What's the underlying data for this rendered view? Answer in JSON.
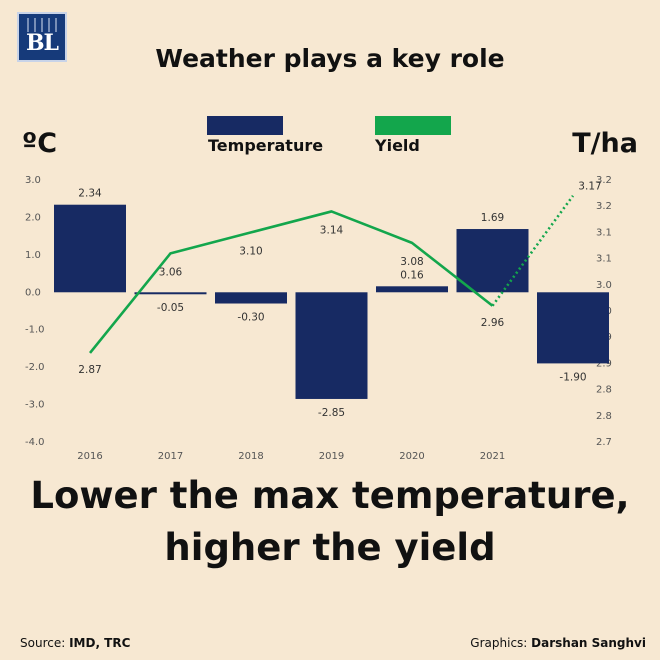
{
  "logo": {
    "text": "BL"
  },
  "title": "Weather plays a key role",
  "units": {
    "left": "ºC",
    "right": "T/ha"
  },
  "legend": {
    "temperature": {
      "label": "Temperature",
      "color": "#172a63"
    },
    "yield": {
      "label": "Yield",
      "color": "#13a64c"
    }
  },
  "headline": {
    "line1": "Lower the max temperature,",
    "line2": "higher the yield"
  },
  "footer": {
    "source_prefix": "Source: ",
    "source": "IMD, TRC",
    "graphics_prefix": "Graphics: ",
    "graphics": "Darshan Sanghvi"
  },
  "chart_data": {
    "type": "bar",
    "categories": [
      "2016",
      "2017",
      "2018",
      "2019",
      "2020",
      "2021",
      ""
    ],
    "series": [
      {
        "name": "Temperature",
        "type": "bar",
        "axis": "left",
        "values": [
          2.34,
          -0.05,
          -0.3,
          -2.85,
          0.16,
          1.69,
          -1.9
        ],
        "labels": [
          "2.34",
          "-0.05",
          "-0.30",
          "-2.85",
          "0.16",
          "1.69",
          "-1.90"
        ]
      },
      {
        "name": "Yield",
        "type": "line",
        "axis": "right",
        "values": [
          2.87,
          3.06,
          3.1,
          3.14,
          3.08,
          2.96,
          3.17
        ],
        "labels": [
          "2.87",
          "3.06",
          "3.10",
          "3.14",
          "3.08",
          "2.96",
          "3.17"
        ],
        "projected_last_segment": true
      }
    ],
    "y_left": {
      "ylim": [
        -4.0,
        3.0
      ],
      "ticks": [
        "3.0",
        "2.0",
        "1.0",
        "0.0",
        "-1.0",
        "-2.0",
        "-3.0",
        "-4.0"
      ]
    },
    "y_right": {
      "ylim": [
        2.7,
        3.2
      ],
      "ticks": [
        "3.2",
        "3.2",
        "3.1",
        "3.1",
        "3.0",
        "3.0",
        "2.9",
        "2.9",
        "2.8",
        "2.8",
        "2.7"
      ]
    },
    "grid": false
  }
}
